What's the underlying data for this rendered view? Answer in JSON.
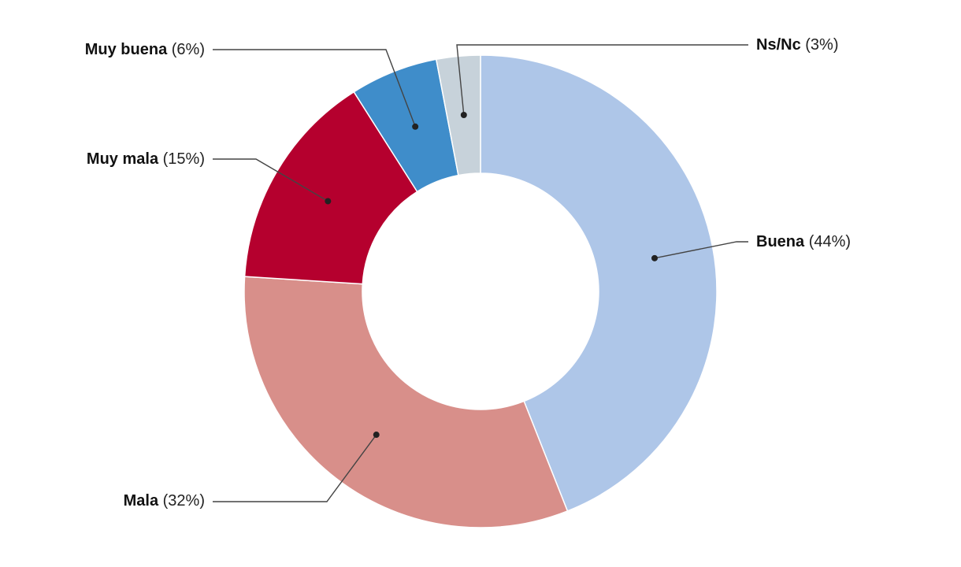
{
  "chart_data": {
    "type": "pie",
    "donut": true,
    "slices": [
      {
        "name": "Buena",
        "pct_label": "(44%)",
        "value": 44,
        "color": "#aec6e8"
      },
      {
        "name": "Mala",
        "pct_label": "(32%)",
        "value": 32,
        "color": "#d88f8a"
      },
      {
        "name": "Muy mala",
        "pct_label": "(15%)",
        "value": 15,
        "color": "#b5002e"
      },
      {
        "name": "Muy buena",
        "pct_label": "(6%)",
        "value": 6,
        "color": "#3f8dca"
      },
      {
        "name": "Ns/Nc",
        "pct_label": "(3%)",
        "value": 3,
        "color": "#c7d2da"
      }
    ],
    "legend": "callout-labels"
  }
}
